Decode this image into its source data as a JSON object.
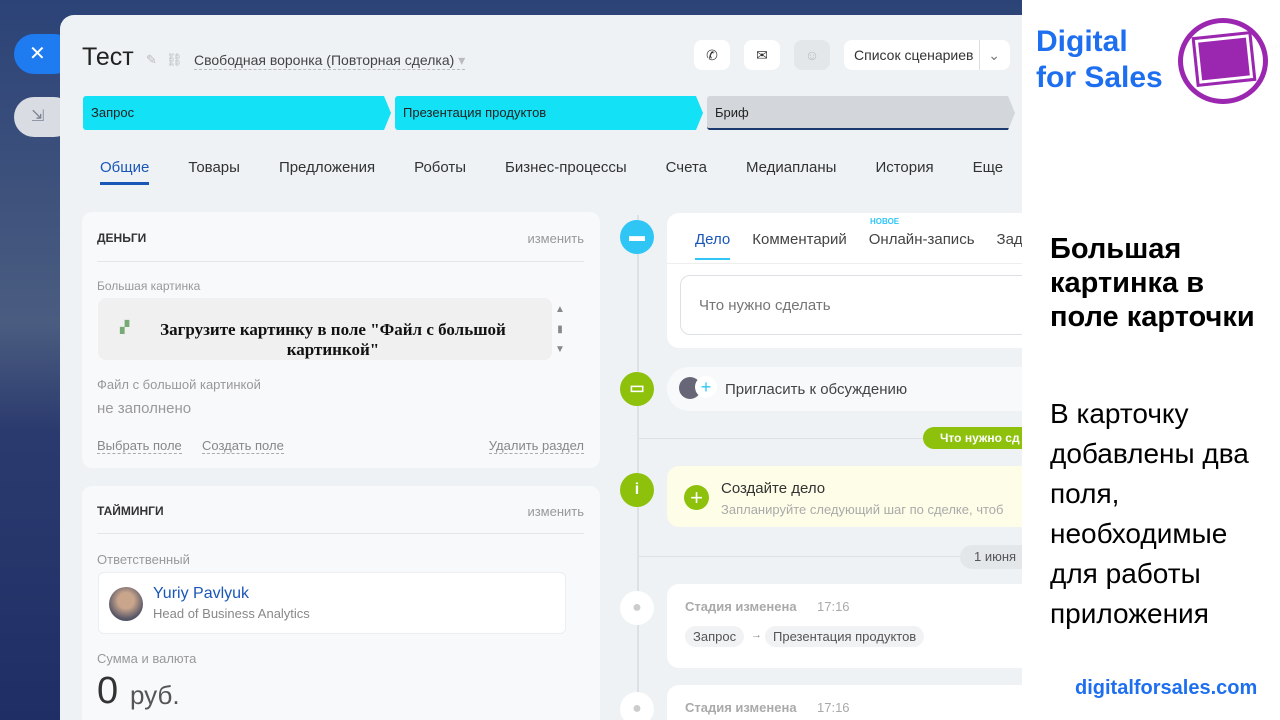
{
  "window": {
    "close_icon": "close-icon",
    "minimize_icon": "collapse-icon"
  },
  "header": {
    "title": "Тест",
    "funnel": "Свободная воронка (Повторная сделка)",
    "scenarios": "Список сценариев"
  },
  "stages": [
    {
      "label": "Запрос",
      "color": "#13e1f5"
    },
    {
      "label": "Презентация продуктов",
      "color": "#13e1f5"
    },
    {
      "label": "Бриф",
      "color": "#d3d6da"
    }
  ],
  "tabs": [
    "Общие",
    "Товары",
    "Предложения",
    "Роботы",
    "Бизнес-процессы",
    "Счета",
    "Медиапланы",
    "История",
    "Еще"
  ],
  "money": {
    "title": "ДЕНЬГИ",
    "edit": "изменить",
    "big_image_label": "Большая картинка",
    "big_image_text": "Загрузите картинку в поле \"Файл с большой картинкой\"",
    "file_label": "Файл с большой картинкой",
    "file_value": "не заполнено",
    "choose_field": "Выбрать поле",
    "create_field": "Создать поле",
    "delete_section": "Удалить раздел"
  },
  "timings": {
    "title": "ТАЙМИНГИ",
    "edit": "изменить",
    "responsible_label": "Ответственный",
    "user_name": "Yuriy Pavlyuk",
    "user_role": "Head of Business Analytics",
    "amount_label": "Сумма и валюта",
    "amount": "0",
    "currency": "руб."
  },
  "timeline": {
    "tabs": [
      "Дело",
      "Комментарий",
      "Онлайн-запись",
      "Зада"
    ],
    "new_badge": "НОВОЕ",
    "todo_placeholder": "Что нужно сделать",
    "invite": "Пригласить к обсуждению",
    "todo_pill": "Что нужно сд",
    "create_title": "Создайте дело",
    "create_sub": "Запланируйте следующий шаг по сделке, чтоб",
    "date": "1 июня",
    "events": [
      {
        "title": "Стадия изменена",
        "time": "17:16",
        "from": "Запрос",
        "to": "Презентация продуктов"
      },
      {
        "title": "Стадия изменена",
        "time": "17:16"
      }
    ]
  },
  "promo": {
    "logo_line1": "Digital",
    "logo_line2": "for Sales",
    "heading": "Большая картинка в поле карточки",
    "body": "В карточку добавлены два поля, необходимые для работы приложения",
    "url": "digitalforsales.com"
  },
  "colors": {
    "accent": "#1a56b8",
    "stage_done": "#13e1f5",
    "green": "#8dc10b",
    "promo_blue": "#1e6ff0",
    "logo_purple": "#9b27b0"
  }
}
